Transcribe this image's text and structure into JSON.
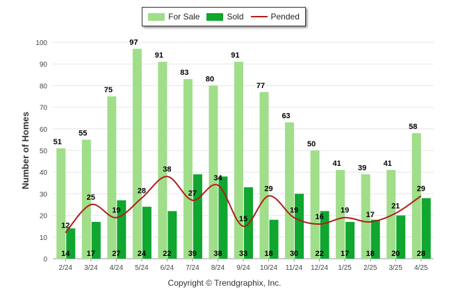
{
  "chart_data": {
    "type": "bar",
    "categories": [
      "2/24",
      "3/24",
      "4/24",
      "5/24",
      "6/24",
      "7/24",
      "8/24",
      "9/24",
      "10/24",
      "11/24",
      "12/24",
      "1/25",
      "2/25",
      "3/25",
      "4/25"
    ],
    "series": [
      {
        "name": "For Sale",
        "kind": "bar",
        "color": "#a0de8a",
        "values": [
          51,
          55,
          75,
          97,
          91,
          83,
          80,
          91,
          77,
          63,
          50,
          41,
          39,
          41,
          58
        ]
      },
      {
        "name": "Sold",
        "kind": "bar",
        "color": "#10a630",
        "values": [
          14,
          17,
          27,
          24,
          22,
          39,
          38,
          33,
          18,
          30,
          22,
          17,
          18,
          20,
          28
        ]
      },
      {
        "name": "Pended",
        "kind": "line",
        "color": "#b31b1b",
        "values": [
          12,
          25,
          19,
          28,
          38,
          27,
          34,
          15,
          29,
          19,
          16,
          19,
          17,
          21,
          29
        ]
      }
    ],
    "ylabel": "Number of Homes",
    "xlabel": "",
    "ylim": [
      0,
      100
    ],
    "yticks": [
      0,
      10,
      20,
      30,
      40,
      50,
      60,
      70,
      80,
      90,
      100
    ],
    "grid": true,
    "legend_position": "top-center"
  },
  "legend": {
    "for_sale": "For Sale",
    "sold": "Sold",
    "pended": "Pended"
  },
  "footer": "Copyright © Trendgraphix, Inc."
}
